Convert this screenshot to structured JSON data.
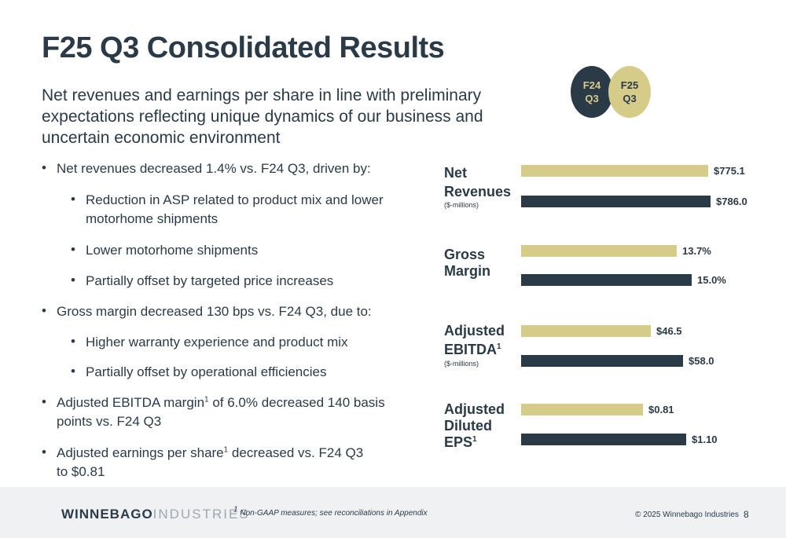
{
  "title": "F25 Q3 Consolidated Results",
  "subtitle": "Net revenues and earnings per share in line with preliminary expectations reflecting unique dynamics of our business and uncertain economic environment",
  "bullets": {
    "b1": "Net revenues decreased 1.4% vs. F24 Q3, driven by:",
    "b1a_l1": "Reduction in ASP related to product mix and lower",
    "b1a_l2": "motorhome shipments",
    "b1b": "Lower motorhome shipments",
    "b1c": "Partially offset by targeted price increases",
    "b2": "Gross margin decreased 130 bps vs. F24 Q3, due to:",
    "b2a": "Higher warranty experience and product mix",
    "b2b": "Partially offset by operational efficiencies",
    "b3_l1a": "Adjusted EBITDA margin",
    "b3_sup": "1",
    "b3_l1b": " of 6.0% decreased 140 basis",
    "b3_l2": "points vs. F24 Q3",
    "b4_l1a": "Adjusted earnings per share",
    "b4_sup": "1",
    "b4_l1b": " decreased vs. F24 Q3",
    "b4_l2": "to $0.81",
    "bullet_char": "•"
  },
  "legend": {
    "f24_l1": "F24",
    "f24_l2": "Q3",
    "f25_l1": "F25",
    "f25_l2": "Q3"
  },
  "metrics": [
    {
      "l1": "Net",
      "l2": "Revenues",
      "unit": "($-millions)",
      "f25_label": "$775.1",
      "f24_label": "$786.0",
      "f25": 775.1,
      "f24": 786.0
    },
    {
      "l1": "Gross",
      "l2": "Margin",
      "unit": "",
      "f25_label": "13.7%",
      "f24_label": "15.0%",
      "f25": 13.7,
      "f24": 15.0
    },
    {
      "l1": "Adjusted",
      "l2": "EBITDA",
      "sup": "1",
      "unit": "($-millions)",
      "f25_label": "$46.5",
      "f24_label": "$58.0",
      "f25": 46.5,
      "f24": 58.0
    },
    {
      "l1": "Adjusted",
      "l2": "Diluted",
      "l3": "EPS",
      "sup": "1",
      "unit": "",
      "f25_label": "$0.81",
      "f24_label": "$1.10",
      "f25": 0.81,
      "f24": 1.1
    }
  ],
  "colors": {
    "navy": "#2b3a47",
    "gold": "#d6cc8a"
  },
  "footer": {
    "logo_bold": "WINNEBAGO",
    "logo_light": "INDUSTRIES",
    "footnote_sup": "1",
    "footnote": " Non-GAAP measures; see reconciliations in Appendix",
    "copyright": "© 2025 Winnebago Industries",
    "page": "8"
  }
}
